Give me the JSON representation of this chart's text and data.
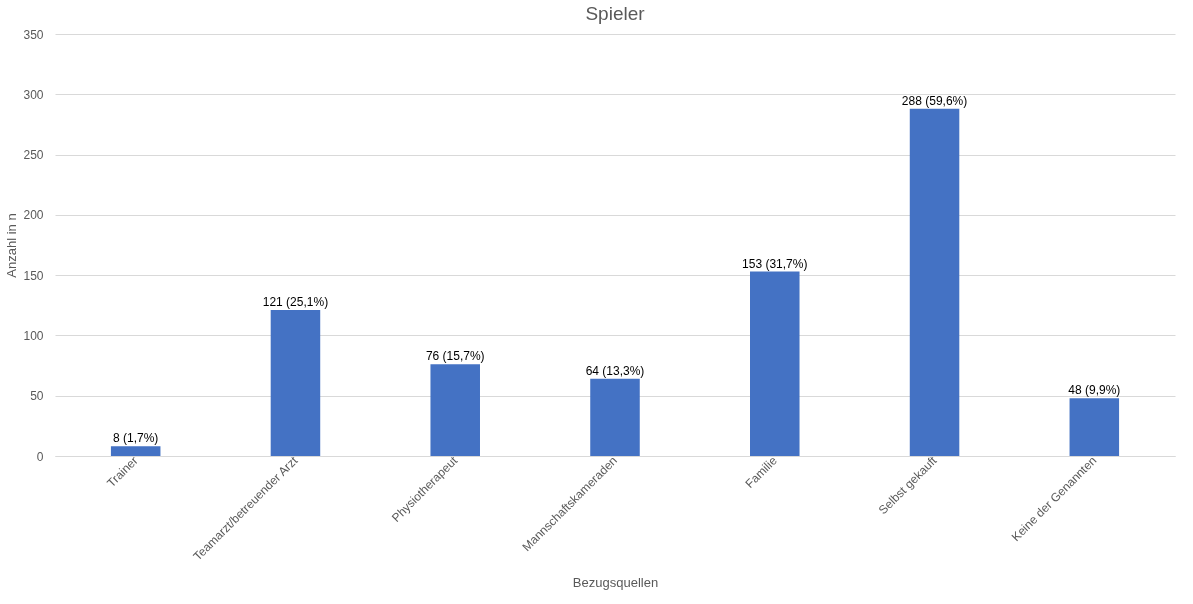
{
  "chart_data": {
    "type": "bar",
    "title": "Spieler",
    "xlabel": "Bezugsquellen",
    "ylabel": "Anzahl in n",
    "categories": [
      "Trainer",
      "Teamarzt/betreuender Arzt",
      "Physiotherapeut",
      "Mannschaftskameraden",
      "Familie",
      "Selbst gekauft",
      "Keine der Genannten"
    ],
    "values": [
      8,
      121,
      76,
      64,
      153,
      288,
      48
    ],
    "value_labels": [
      "8 (1,7%)",
      "121 (25,1%)",
      "76 (15,7%)",
      "64 (13,3%)",
      "153 (31,7%)",
      "288 (59,6%)",
      "48 (9,9%)"
    ],
    "color": "#4472c4",
    "ylim": [
      0,
      350
    ],
    "yticks": [
      0,
      50,
      100,
      150,
      200,
      250,
      300,
      350
    ],
    "grid": "y"
  }
}
